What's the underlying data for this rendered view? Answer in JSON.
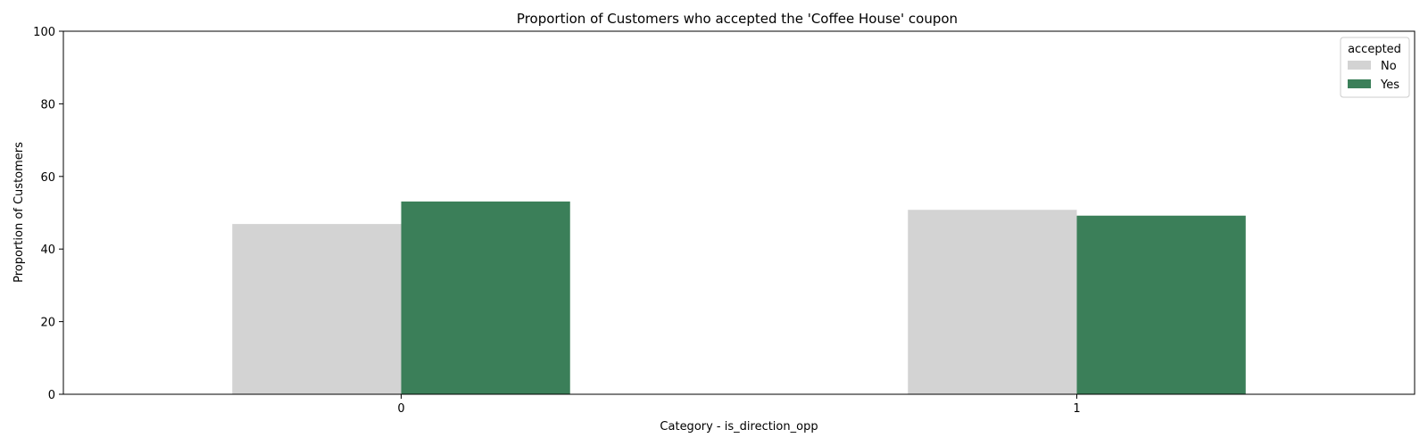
{
  "chart_data": {
    "type": "bar",
    "title": "Proportion of Customers who accepted the 'Coffee House' coupon",
    "xlabel": "Category - is_direction_opp",
    "ylabel": "Proportion of Customers",
    "categories": [
      "0",
      "1"
    ],
    "series": [
      {
        "name": "No",
        "values": [
          46.9,
          50.8
        ],
        "color": "#d3d3d3"
      },
      {
        "name": "Yes",
        "values": [
          53.1,
          49.2
        ],
        "color": "#3b7f59"
      }
    ],
    "ylim": [
      0,
      100
    ],
    "yticks": [
      0,
      20,
      40,
      60,
      80,
      100
    ],
    "grid": false,
    "legend": {
      "title": "accepted",
      "placement": "top-right"
    }
  }
}
